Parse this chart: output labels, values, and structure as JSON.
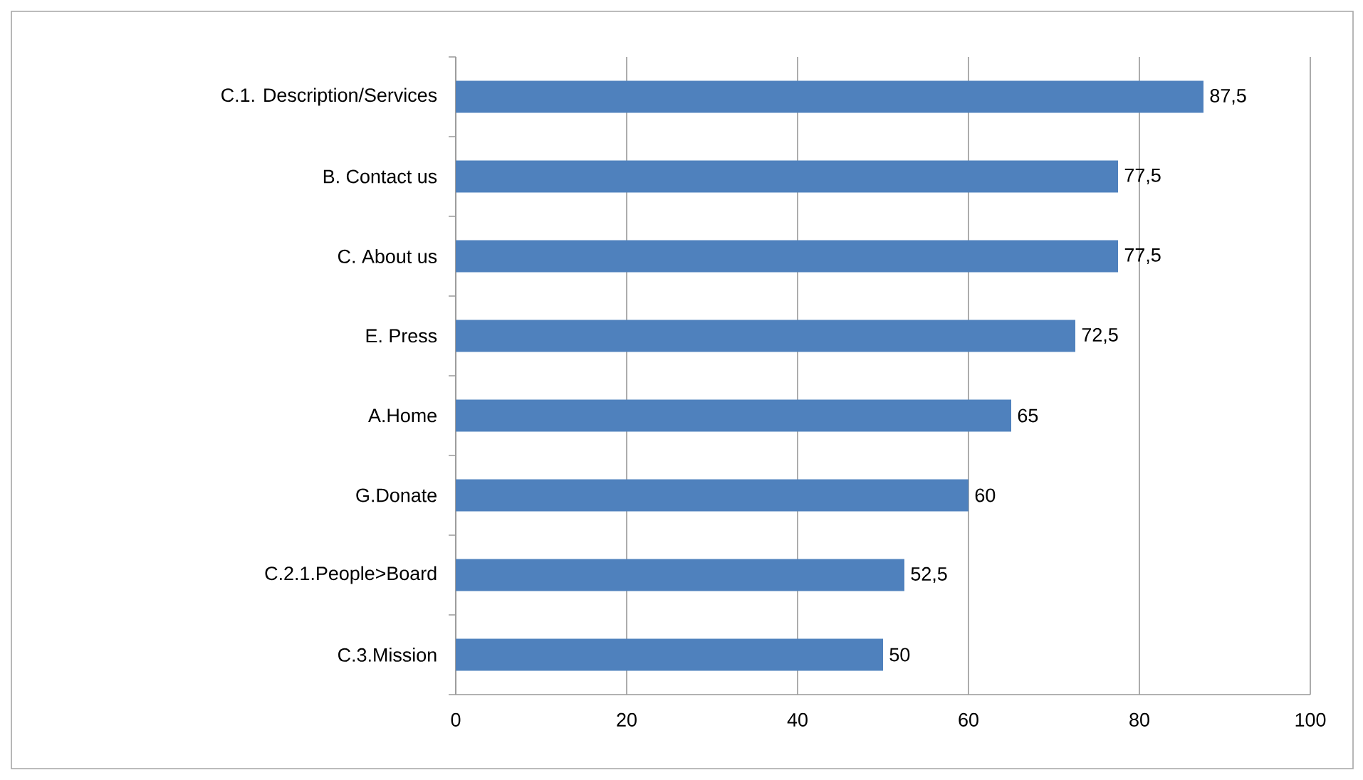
{
  "chart_data": {
    "type": "bar",
    "orientation": "horizontal",
    "categories": [
      "C.1. Description/Services",
      "B. Contact us",
      "C. About us",
      "E. Press",
      "A.Home",
      "G.Donate",
      "C.2.1.People>Board",
      "C.3.Mission"
    ],
    "values": [
      87.5,
      77.5,
      77.5,
      72.5,
      65,
      60,
      52.5,
      50
    ],
    "value_labels": [
      "87,5",
      "77,5",
      "77,5",
      "72,5",
      "65",
      "60",
      "52,5",
      "50"
    ],
    "color": "#4f81bd",
    "xlim": [
      0,
      100
    ],
    "xticks": [
      0,
      20,
      40,
      60,
      80,
      100
    ],
    "grid": "x"
  }
}
